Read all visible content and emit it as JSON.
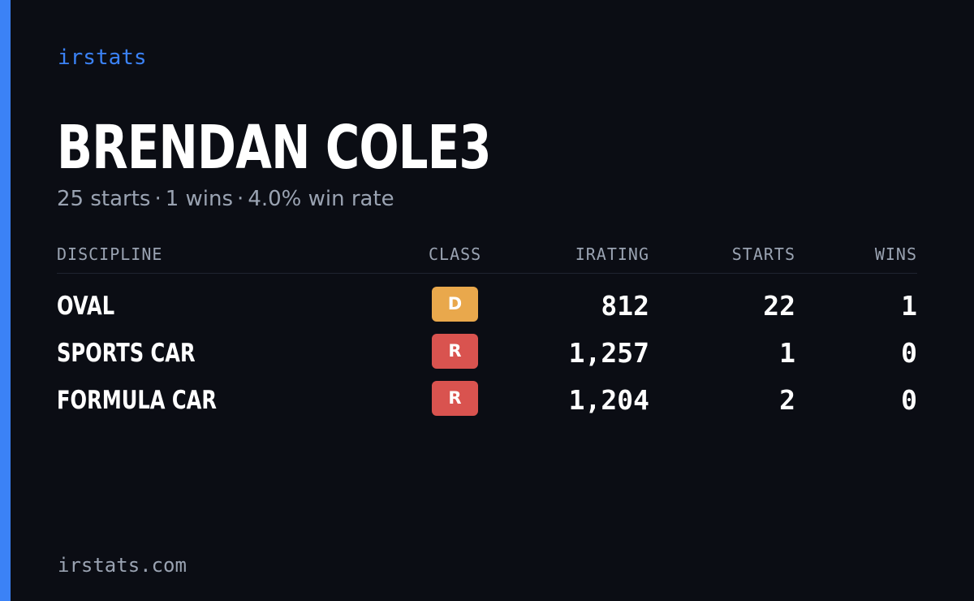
{
  "brand": "irstats",
  "driver_name": "BRENDAN COLE3",
  "summary": {
    "starts": "25 starts",
    "wins": "1 wins",
    "win_rate": "4.0% win rate",
    "separator": "·"
  },
  "table": {
    "headers": {
      "discipline": "DISCIPLINE",
      "class": "CLASS",
      "irating": "IRATING",
      "starts": "STARTS",
      "wins": "WINS"
    },
    "rows": [
      {
        "discipline": "OVAL",
        "class": "D",
        "class_color": "#e9a84c",
        "irating": "812",
        "starts": "22",
        "wins": "1"
      },
      {
        "discipline": "SPORTS CAR",
        "class": "R",
        "class_color": "#d9534f",
        "irating": "1,257",
        "starts": "1",
        "wins": "0"
      },
      {
        "discipline": "FORMULA CAR",
        "class": "R",
        "class_color": "#d9534f",
        "irating": "1,204",
        "starts": "2",
        "wins": "0"
      }
    ]
  },
  "footer": "irstats.com",
  "colors": {
    "accent": "#3b82f6",
    "background": "#0b0d14",
    "muted_text": "#9aa3b2"
  }
}
